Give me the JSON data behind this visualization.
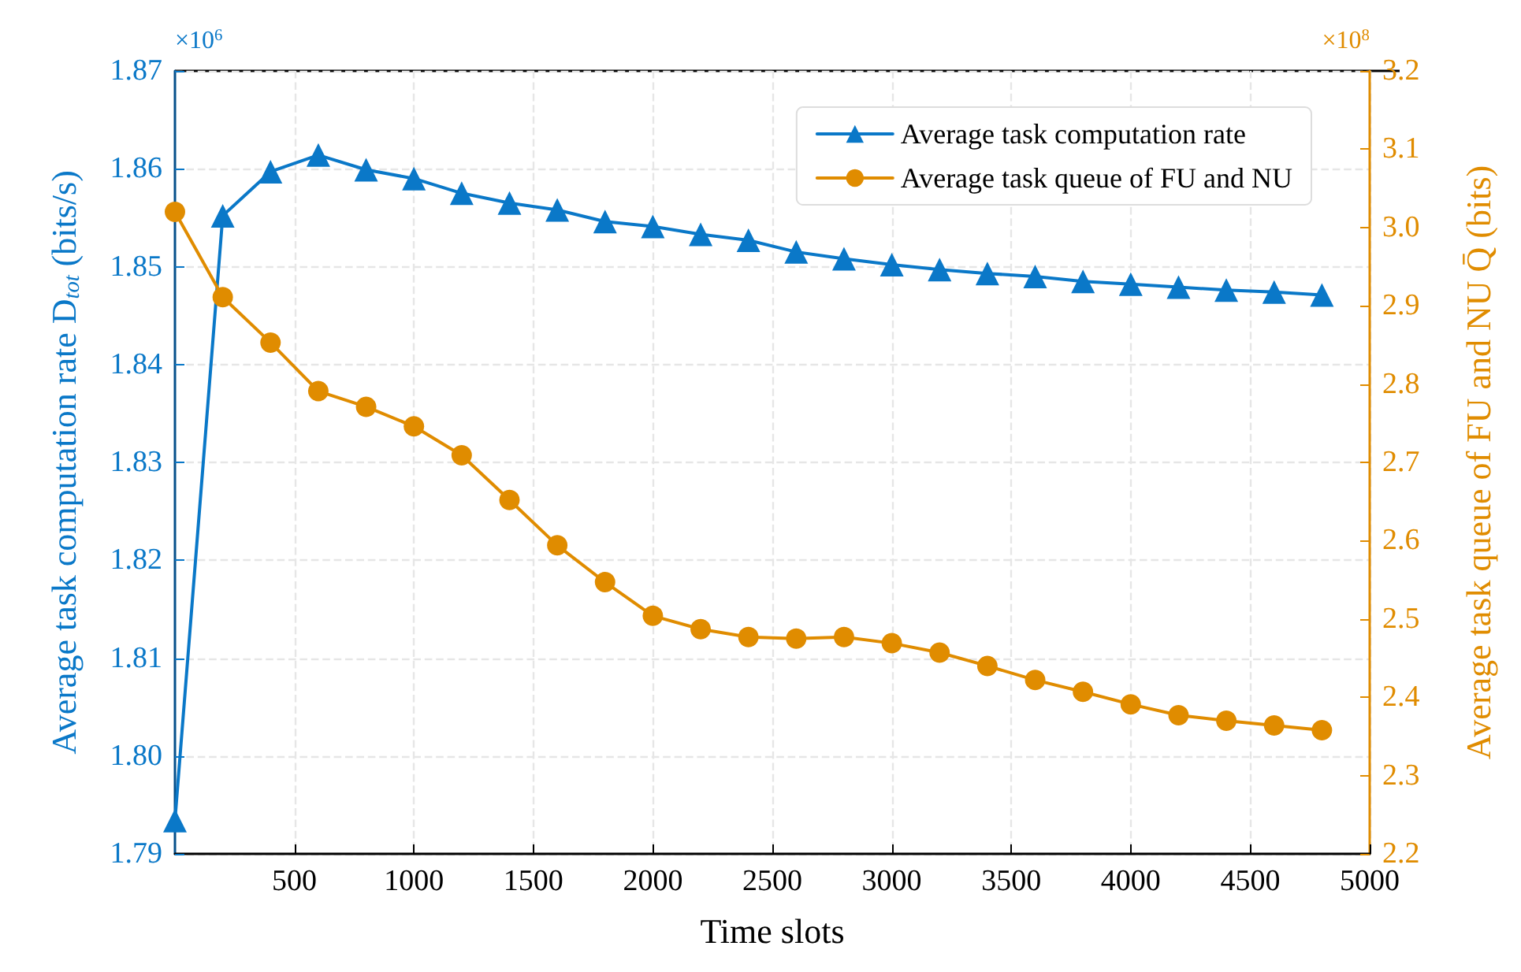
{
  "chart_data": {
    "type": "line",
    "xlabel": "Time slots",
    "ylabel": "Average task computation rate D$_{tot}$ (bits/s)",
    "y2label": "Average task queue of FU and NU Q̄ (bits)",
    "xlim": [
      0,
      5000
    ],
    "xticks": [
      500,
      1000,
      1500,
      2000,
      2500,
      3000,
      3500,
      4000,
      4500,
      5000
    ],
    "ylim": [
      1.79,
      1.87
    ],
    "yticks": [
      1.79,
      {
        "value": 1.8,
        "label": "1.80"
      },
      1.81,
      1.82,
      1.83,
      1.84,
      1.85,
      1.86,
      1.87
    ],
    "y2lim": [
      2.2,
      3.2
    ],
    "y2ticks": [
      2.2,
      2.3,
      2.4,
      2.5,
      2.6,
      2.7,
      2.8,
      2.9,
      {
        "value": 3,
        "label": "3.0"
      },
      3.1,
      3.2
    ],
    "annotations": [
      "×10$^{6}$",
      "×10$^{8}$"
    ],
    "grid": true,
    "legend": "top right",
    "series": [
      {
        "name": "Average task computation rate",
        "color": "#0a78c8",
        "marker": "triangle",
        "x": [
          0,
          200,
          400,
          600,
          800,
          1000,
          1200,
          1400,
          1600,
          1800,
          2000,
          2200,
          2400,
          2600,
          2800,
          3000,
          3200,
          3400,
          3600,
          3800,
          4000,
          4200,
          4400,
          4600,
          4800
        ],
        "values": [
          1.7934,
          1.8552,
          1.8597,
          1.8614,
          1.8599,
          1.859,
          1.8575,
          1.8565,
          1.8558,
          1.8546,
          1.8541,
          1.8533,
          1.8527,
          1.8515,
          1.8508,
          1.8502,
          1.8497,
          1.8493,
          1.849,
          1.8485,
          1.8482,
          1.8479,
          1.8476,
          1.8474,
          1.8471
        ]
      },
      {
        "name": "Average task queue of FU and NU",
        "color": "#e08c00",
        "marker": "circle",
        "axis": "y2",
        "x": [
          0,
          200,
          400,
          600,
          800,
          1000,
          1200,
          1400,
          1600,
          1800,
          2000,
          2200,
          2400,
          2600,
          2800,
          3000,
          3200,
          3400,
          3600,
          3800,
          4000,
          4200,
          4400,
          4600,
          4800
        ],
        "values": [
          3.02,
          2.911,
          2.853,
          2.791,
          2.771,
          2.746,
          2.709,
          2.652,
          2.594,
          2.547,
          2.504,
          2.487,
          2.477,
          2.475,
          2.477,
          2.469,
          2.457,
          2.44,
          2.422,
          2.407,
          2.391,
          2.377,
          2.37,
          2.364,
          2.358
        ]
      }
    ]
  }
}
